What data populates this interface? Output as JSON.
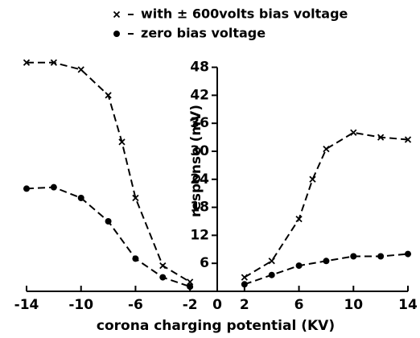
{
  "chart_data": {
    "type": "line",
    "xlabel": "corona charging potential (KV)",
    "ylabel": "response (mV)",
    "xlim": [
      -14,
      14
    ],
    "ylim": [
      0,
      50
    ],
    "xticks": [
      -14,
      -10,
      -6,
      -2,
      0,
      2,
      6,
      10,
      14
    ],
    "yticks": [
      6,
      12,
      18,
      24,
      30,
      36,
      42,
      48
    ],
    "series": [
      {
        "name": "with ± 600volts bias voltage",
        "color": "#000000",
        "marker": "x",
        "x": [
          -14,
          -12,
          -10,
          -8,
          -7,
          -6,
          -4,
          -2,
          0,
          2,
          4,
          6,
          7,
          8,
          10,
          12,
          14
        ],
        "values": [
          49,
          49,
          47.5,
          42,
          32,
          20,
          5.5,
          2,
          null,
          3,
          6.5,
          15.5,
          24,
          30.5,
          34,
          33,
          32.5
        ]
      },
      {
        "name": "zero bias voltage",
        "color": "#000000",
        "marker": "dot",
        "x": [
          -14,
          -12,
          -10,
          -8,
          -6,
          -4,
          -2,
          0,
          2,
          4,
          6,
          8,
          10,
          12,
          14
        ],
        "values": [
          22,
          22.3,
          20,
          15,
          7,
          3,
          1,
          null,
          1.5,
          3.5,
          5.5,
          6.5,
          7.5,
          7.5,
          8
        ]
      }
    ]
  }
}
